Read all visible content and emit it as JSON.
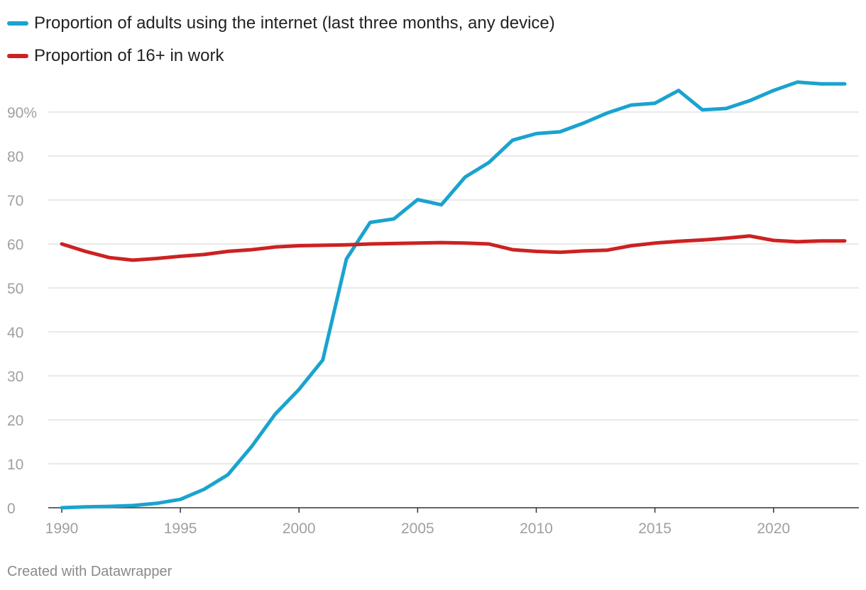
{
  "legend": [
    {
      "label": "Proportion of adults using the internet (last three months, any device)",
      "color": "#1aa3cf"
    },
    {
      "label": "Proportion of 16+ in work",
      "color": "#cc2222"
    }
  ],
  "credit": "Created with Datawrapper",
  "chart_data": {
    "type": "line",
    "title": "",
    "xlabel": "",
    "ylabel": "",
    "x": [
      1990,
      1991,
      1992,
      1993,
      1994,
      1995,
      1996,
      1997,
      1998,
      1999,
      2000,
      2001,
      2002,
      2003,
      2004,
      2005,
      2006,
      2007,
      2008,
      2009,
      2010,
      2011,
      2012,
      2013,
      2014,
      2015,
      2016,
      2017,
      2018,
      2019,
      2020,
      2021,
      2022,
      2023
    ],
    "xlim": [
      1990,
      2023
    ],
    "ylim": [
      0,
      100
    ],
    "x_ticks": [
      1990,
      1995,
      2000,
      2005,
      2010,
      2015,
      2020
    ],
    "y_ticks": [
      0,
      10,
      20,
      30,
      40,
      50,
      60,
      70,
      80,
      90
    ],
    "y_tick_labels": [
      "0",
      "10",
      "20",
      "30",
      "40",
      "50",
      "60",
      "70",
      "80",
      "90%"
    ],
    "series": [
      {
        "name": "Proportion of adults using the internet (last three months, any device)",
        "color": "#1aa3cf",
        "values": [
          0,
          0.2,
          0.3,
          0.5,
          1.0,
          1.9,
          4.2,
          7.5,
          13.9,
          21.3,
          26.9,
          33.6,
          56.6,
          64.9,
          65.7,
          70.1,
          68.9,
          75.2,
          78.5,
          83.6,
          85.1,
          85.5,
          87.5,
          89.8,
          91.6,
          92.0,
          94.9,
          90.5,
          90.8,
          92.6,
          94.9,
          96.8,
          96.4,
          96.4
        ]
      },
      {
        "name": "Proportion of 16+ in work",
        "color": "#cc2222",
        "values": [
          60.0,
          58.3,
          56.9,
          56.3,
          56.7,
          57.2,
          57.6,
          58.3,
          58.7,
          59.3,
          59.6,
          59.7,
          59.8,
          60.0,
          60.1,
          60.2,
          60.3,
          60.2,
          60.0,
          58.7,
          58.3,
          58.1,
          58.4,
          58.6,
          59.6,
          60.2,
          60.6,
          60.9,
          61.3,
          61.8,
          60.8,
          60.5,
          60.7,
          60.7
        ]
      }
    ]
  }
}
